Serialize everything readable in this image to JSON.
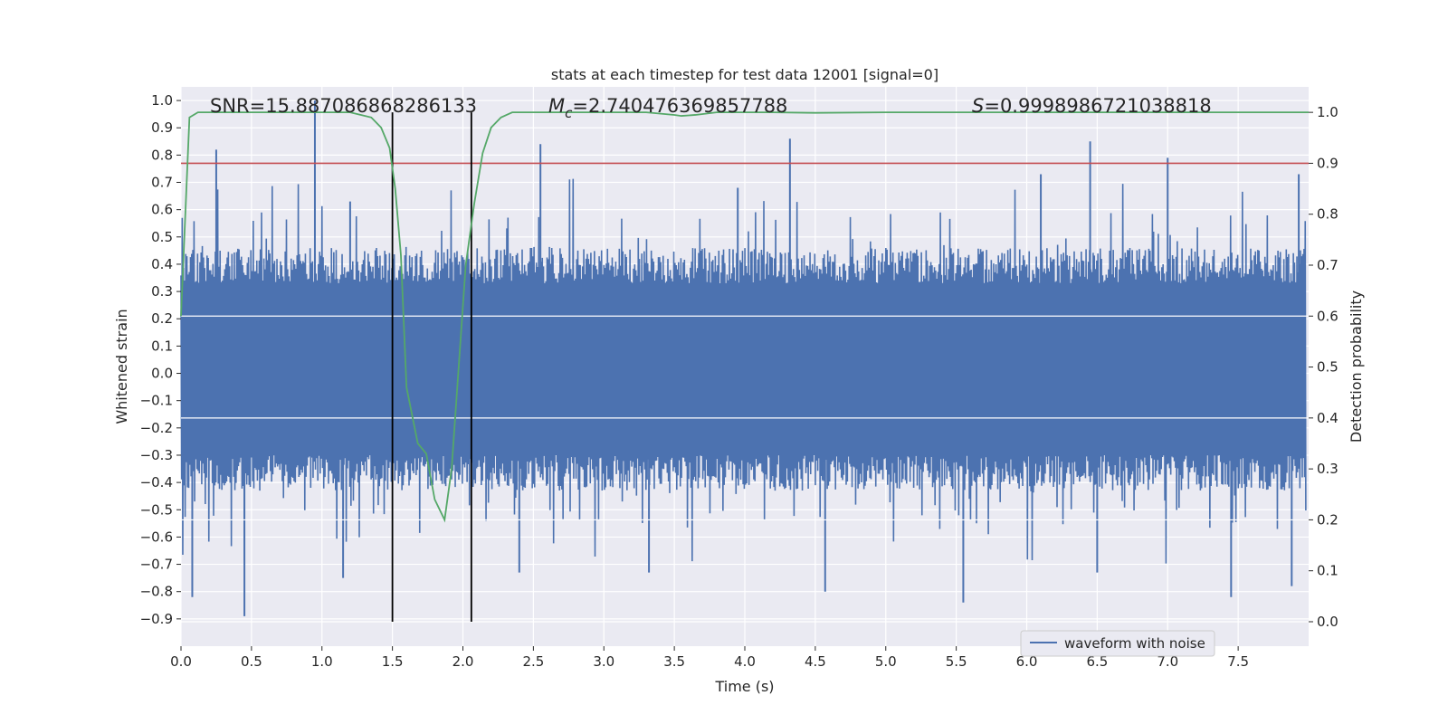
{
  "chart_data": {
    "type": "line",
    "title": "stats at each timestep for test data 12001 [signal=0]",
    "xlabel": "Time (s)",
    "ylabel": "Whitened strain",
    "y2label": "Detection probability",
    "xlim": [
      0.0,
      8.0
    ],
    "ylim": [
      -1.0,
      1.05
    ],
    "y2lim": [
      -0.048,
      1.05
    ],
    "x_ticks": [
      0.0,
      0.5,
      1.0,
      1.5,
      2.0,
      2.5,
      3.0,
      3.5,
      4.0,
      4.5,
      5.0,
      5.5,
      6.0,
      6.5,
      7.0,
      7.5
    ],
    "x_tick_labels": [
      "0.0",
      "0.5",
      "1.0",
      "1.5",
      "2.0",
      "2.5",
      "3.0",
      "3.5",
      "4.0",
      "4.5",
      "5.0",
      "5.5",
      "6.0",
      "6.5",
      "7.0",
      "7.5"
    ],
    "y_ticks": [
      -0.9,
      -0.8,
      -0.7,
      -0.6,
      -0.5,
      -0.4,
      -0.3,
      -0.2,
      -0.1,
      0.0,
      0.1,
      0.2,
      0.3,
      0.4,
      0.5,
      0.6,
      0.7,
      0.8,
      0.9,
      1.0
    ],
    "y_tick_labels": [
      "−0.9",
      "−0.8",
      "−0.7",
      "−0.6",
      "−0.5",
      "−0.4",
      "−0.3",
      "−0.2",
      "−0.1",
      "0.0",
      "0.1",
      "0.2",
      "0.3",
      "0.4",
      "0.5",
      "0.6",
      "0.7",
      "0.8",
      "0.9",
      "1.0"
    ],
    "y2_ticks": [
      0.0,
      0.1,
      0.2,
      0.3,
      0.4,
      0.5,
      0.6,
      0.7,
      0.8,
      0.9,
      1.0
    ],
    "y2_tick_labels": [
      "0.0",
      "0.1",
      "0.2",
      "0.3",
      "0.4",
      "0.5",
      "0.6",
      "0.7",
      "0.8",
      "0.9",
      "1.0"
    ],
    "grid": true,
    "legend": {
      "position": "lower-right",
      "entries": [
        "waveform with noise"
      ]
    },
    "annotations": {
      "snr": "SNR=15.887086868286133",
      "mc_symbol": "M",
      "mc_sub": "c",
      "mc_value": "=2.740476369857788",
      "s_symbol": "S",
      "s_value": "=0.9998986721038818"
    },
    "waveform": {
      "name": "waveform with noise",
      "color": "#4c72b0",
      "band_low": -0.3,
      "band_high": 0.33,
      "peaks": [
        [
          0.95,
          1.0
        ],
        [
          0.25,
          0.82
        ],
        [
          2.55,
          0.84
        ],
        [
          4.32,
          0.86
        ],
        [
          6.45,
          0.85
        ],
        [
          7.0,
          0.79
        ],
        [
          7.93,
          0.73
        ],
        [
          1.2,
          0.63
        ],
        [
          3.95,
          0.68
        ],
        [
          6.1,
          0.73
        ]
      ],
      "troughs": [
        [
          0.45,
          -0.89
        ],
        [
          0.08,
          -0.82
        ],
        [
          1.15,
          -0.75
        ],
        [
          4.57,
          -0.8
        ],
        [
          5.55,
          -0.84
        ],
        [
          7.45,
          -0.82
        ],
        [
          7.88,
          -0.78
        ],
        [
          3.32,
          -0.73
        ],
        [
          2.4,
          -0.73
        ],
        [
          6.5,
          -0.73
        ]
      ]
    },
    "probability": {
      "color": "#55a868",
      "points": [
        [
          0.0,
          0.6
        ],
        [
          0.06,
          0.99
        ],
        [
          0.12,
          1.0
        ],
        [
          0.5,
          1.0
        ],
        [
          1.0,
          1.0
        ],
        [
          1.2,
          1.0
        ],
        [
          1.35,
          0.99
        ],
        [
          1.42,
          0.97
        ],
        [
          1.48,
          0.93
        ],
        [
          1.52,
          0.85
        ],
        [
          1.56,
          0.72
        ],
        [
          1.6,
          0.46
        ],
        [
          1.68,
          0.35
        ],
        [
          1.74,
          0.33
        ],
        [
          1.8,
          0.24
        ],
        [
          1.87,
          0.2
        ],
        [
          1.92,
          0.3
        ],
        [
          1.97,
          0.5
        ],
        [
          2.02,
          0.7
        ],
        [
          2.08,
          0.82
        ],
        [
          2.14,
          0.92
        ],
        [
          2.2,
          0.97
        ],
        [
          2.27,
          0.99
        ],
        [
          2.35,
          1.0
        ],
        [
          2.8,
          1.0
        ],
        [
          3.3,
          1.0
        ],
        [
          3.5,
          0.995
        ],
        [
          3.55,
          0.993
        ],
        [
          3.65,
          0.995
        ],
        [
          3.8,
          1.0
        ],
        [
          4.2,
          1.0
        ],
        [
          4.5,
          0.999
        ],
        [
          5.0,
          1.0
        ],
        [
          6.0,
          1.0
        ],
        [
          7.0,
          1.0
        ],
        [
          8.0,
          1.0
        ]
      ]
    },
    "threshold": {
      "value": 0.9,
      "color": "#c44e52"
    },
    "vlines": [
      1.5,
      2.06
    ]
  }
}
